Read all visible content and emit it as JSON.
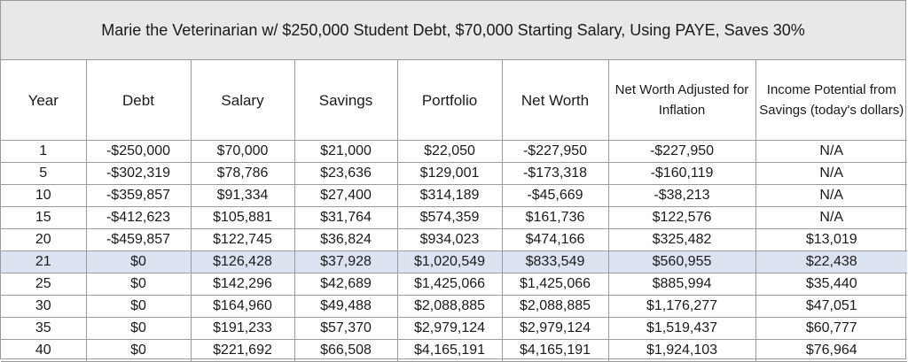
{
  "title": "Marie the Veterinarian w/ $250,000 Student Debt, $70,000 Starting Salary, Using PAYE, Saves 30%",
  "headers": [
    "Year",
    "Debt",
    "Salary",
    "Savings",
    "Portfolio",
    "Net Worth",
    "Net Worth Adjusted for Inflation",
    "Income Potential from Savings (today's dollars)"
  ],
  "rows": [
    [
      "1",
      "-$250,000",
      "$70,000",
      "$21,000",
      "$22,050",
      "-$227,950",
      "-$227,950",
      "N/A"
    ],
    [
      "5",
      "-$302,319",
      "$78,786",
      "$23,636",
      "$129,001",
      "-$173,318",
      "-$160,119",
      "N/A"
    ],
    [
      "10",
      "-$359,857",
      "$91,334",
      "$27,400",
      "$314,189",
      "-$45,669",
      "-$38,213",
      "N/A"
    ],
    [
      "15",
      "-$412,623",
      "$105,881",
      "$31,764",
      "$574,359",
      "$161,736",
      "$122,576",
      "N/A"
    ],
    [
      "20",
      "-$459,857",
      "$122,745",
      "$36,824",
      "$934,023",
      "$474,166",
      "$325,482",
      "$13,019"
    ],
    [
      "21",
      "$0",
      "$126,428",
      "$37,928",
      "$1,020,549",
      "$833,549",
      "$560,955",
      "$22,438"
    ],
    [
      "25",
      "$0",
      "$142,296",
      "$42,689",
      "$1,425,066",
      "$1,425,066",
      "$885,994",
      "$35,440"
    ],
    [
      "30",
      "$0",
      "$164,960",
      "$49,488",
      "$2,088,885",
      "$2,088,885",
      "$1,176,277",
      "$47,051"
    ],
    [
      "35",
      "$0",
      "$191,233",
      "$57,370",
      "$2,979,124",
      "$2,979,124",
      "$1,519,437",
      "$60,777"
    ],
    [
      "40",
      "$0",
      "$221,692",
      "$66,508",
      "$4,165,191",
      "$4,165,191",
      "$1,924,103",
      "$76,964"
    ]
  ],
  "highlight_row_index": 5,
  "colors": {
    "highlight": "#dce3f0",
    "title_background": "#e8e8e8",
    "grid": "#9a9a9a"
  }
}
